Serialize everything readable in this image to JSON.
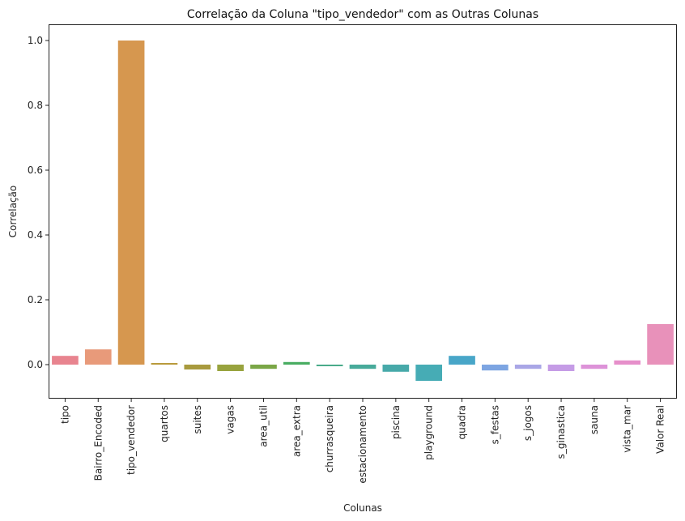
{
  "chart_data": {
    "type": "bar",
    "title": "Correlação da Coluna \"tipo_vendedor\" com as Outras Colunas",
    "xlabel": "Colunas",
    "ylabel": "Correlação",
    "categories": [
      "tipo",
      "Bairro_Encoded",
      "tipo_vendedor",
      "quartos",
      "suites",
      "vagas",
      "area_util",
      "area_extra",
      "churrasqueira",
      "estacionamento",
      "piscina",
      "playground",
      "quadra",
      "s_festas",
      "s_jogos",
      "s_ginastica",
      "sauna",
      "vista_mar",
      "Valor Real"
    ],
    "values": [
      0.027,
      0.047,
      1.0,
      0.005,
      -0.015,
      -0.02,
      -0.013,
      0.008,
      -0.005,
      -0.013,
      -0.022,
      -0.05,
      0.027,
      -0.018,
      -0.013,
      -0.02,
      -0.013,
      0.013,
      0.125
    ],
    "colors": [
      "#e8848f",
      "#e89a7a",
      "#d6974f",
      "#b99a3c",
      "#a89a3e",
      "#98a33e",
      "#7aa646",
      "#49ad62",
      "#4aab8a",
      "#47aa9a",
      "#47a9a9",
      "#46acb5",
      "#48a6c8",
      "#7da5e2",
      "#a9a6e6",
      "#c59ce6",
      "#dd92d8",
      "#e68fca",
      "#e891ba"
    ],
    "ylim": [
      -0.105,
      1.05
    ],
    "yticks": [
      0.0,
      0.2,
      0.4,
      0.6,
      0.8,
      1.0
    ],
    "ytick_labels": [
      "0.0",
      "0.2",
      "0.4",
      "0.6",
      "0.8",
      "1.0"
    ],
    "grid": false,
    "legend": "none"
  }
}
